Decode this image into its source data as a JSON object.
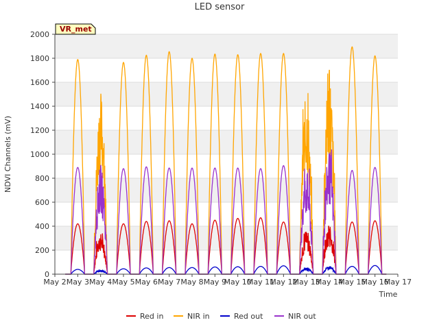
{
  "chart_data": {
    "type": "line",
    "title": "LED sensor",
    "xlabel": "Time",
    "ylabel": "NDVI Channels (mV)",
    "ylim": [
      0,
      2000
    ],
    "yticks": [
      0,
      200,
      400,
      600,
      800,
      1000,
      1200,
      1400,
      1600,
      1800,
      2000
    ],
    "xlim": [
      2,
      17
    ],
    "xtick_labels": [
      "May 2",
      "May 3",
      "May 4",
      "May 5",
      "May 6",
      "May 7",
      "May 8",
      "May 9",
      "May 10",
      "May 11",
      "May 12",
      "May 13",
      "May 14",
      "May 15",
      "May 16",
      "May 17"
    ],
    "grid": true,
    "legend_position": "bottom",
    "site_label": "VR_met",
    "days": [
      3,
      4,
      5,
      6,
      7,
      8,
      9,
      10,
      11,
      12,
      13,
      14,
      15,
      16
    ],
    "series": [
      {
        "name": "Red in",
        "color": "#dd0000",
        "daily_peaks": [
          420,
          340,
          420,
          440,
          445,
          420,
          450,
          465,
          470,
          435,
          350,
          400,
          435,
          445
        ]
      },
      {
        "name": "NIR in",
        "color": "#ffa500",
        "daily_peaks": [
          1790,
          1530,
          1765,
          1825,
          1855,
          1800,
          1835,
          1830,
          1840,
          1840,
          1510,
          1700,
          1895,
          1820
        ]
      },
      {
        "name": "Red out",
        "color": "#0000cc",
        "daily_peaks": [
          40,
          35,
          45,
          52,
          55,
          55,
          60,
          62,
          65,
          70,
          55,
          65,
          65,
          72
        ]
      },
      {
        "name": "NIR out",
        "color": "#9932cc",
        "daily_peaks": [
          890,
          910,
          880,
          895,
          885,
          885,
          885,
          885,
          880,
          905,
          880,
          1040,
          865,
          890
        ]
      }
    ]
  }
}
